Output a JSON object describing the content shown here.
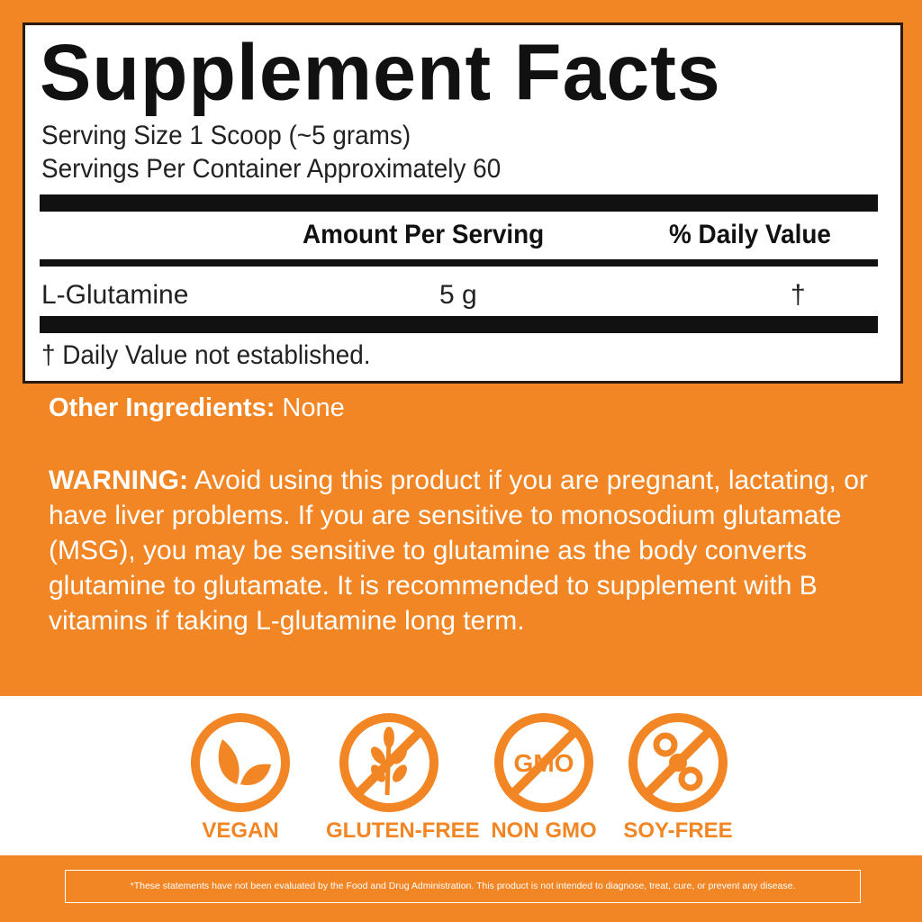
{
  "label": {
    "title": "Supplement Facts",
    "serving_size": "Serving Size  1 Scoop (~5 grams)",
    "servings_per_container": "Servings Per Container  Approximately 60",
    "header_amount": "Amount Per Serving",
    "header_dv": "% Daily Value",
    "rows": [
      {
        "name": "L-Glutamine",
        "amount": "5 g",
        "dv": "†"
      }
    ],
    "footnote": "† Daily Value not established."
  },
  "other_ingredients": {
    "label": "Other Ingredients:",
    "value": "None"
  },
  "warning": {
    "label": "WARNING:",
    "text": "Avoid using this product if you are pregnant, lactating, or have liver problems. If you are sensitive to monosodium glutamate (MSG), you may be sensitive to glutamine as the body converts glutamine to glutamate. It is recommended to supplement with B vitamins if taking L-glutamine long term."
  },
  "badges": [
    {
      "label": "VEGAN",
      "icon": "leaf-icon"
    },
    {
      "label": "GLUTEN-FREE",
      "icon": "no-wheat-icon"
    },
    {
      "label": "NON GMO",
      "icon": "no-gmo-icon",
      "icon_text": "GMO"
    },
    {
      "label": "SOY-FREE",
      "icon": "no-soy-icon"
    }
  ],
  "disclaimer": "*These statements have not been evaluated by the Food and Drug Administration. This product is not intended to diagnose, treat, cure, or prevent any disease.",
  "colors": {
    "brand_orange": "#f28524",
    "label_black": "#111111"
  }
}
